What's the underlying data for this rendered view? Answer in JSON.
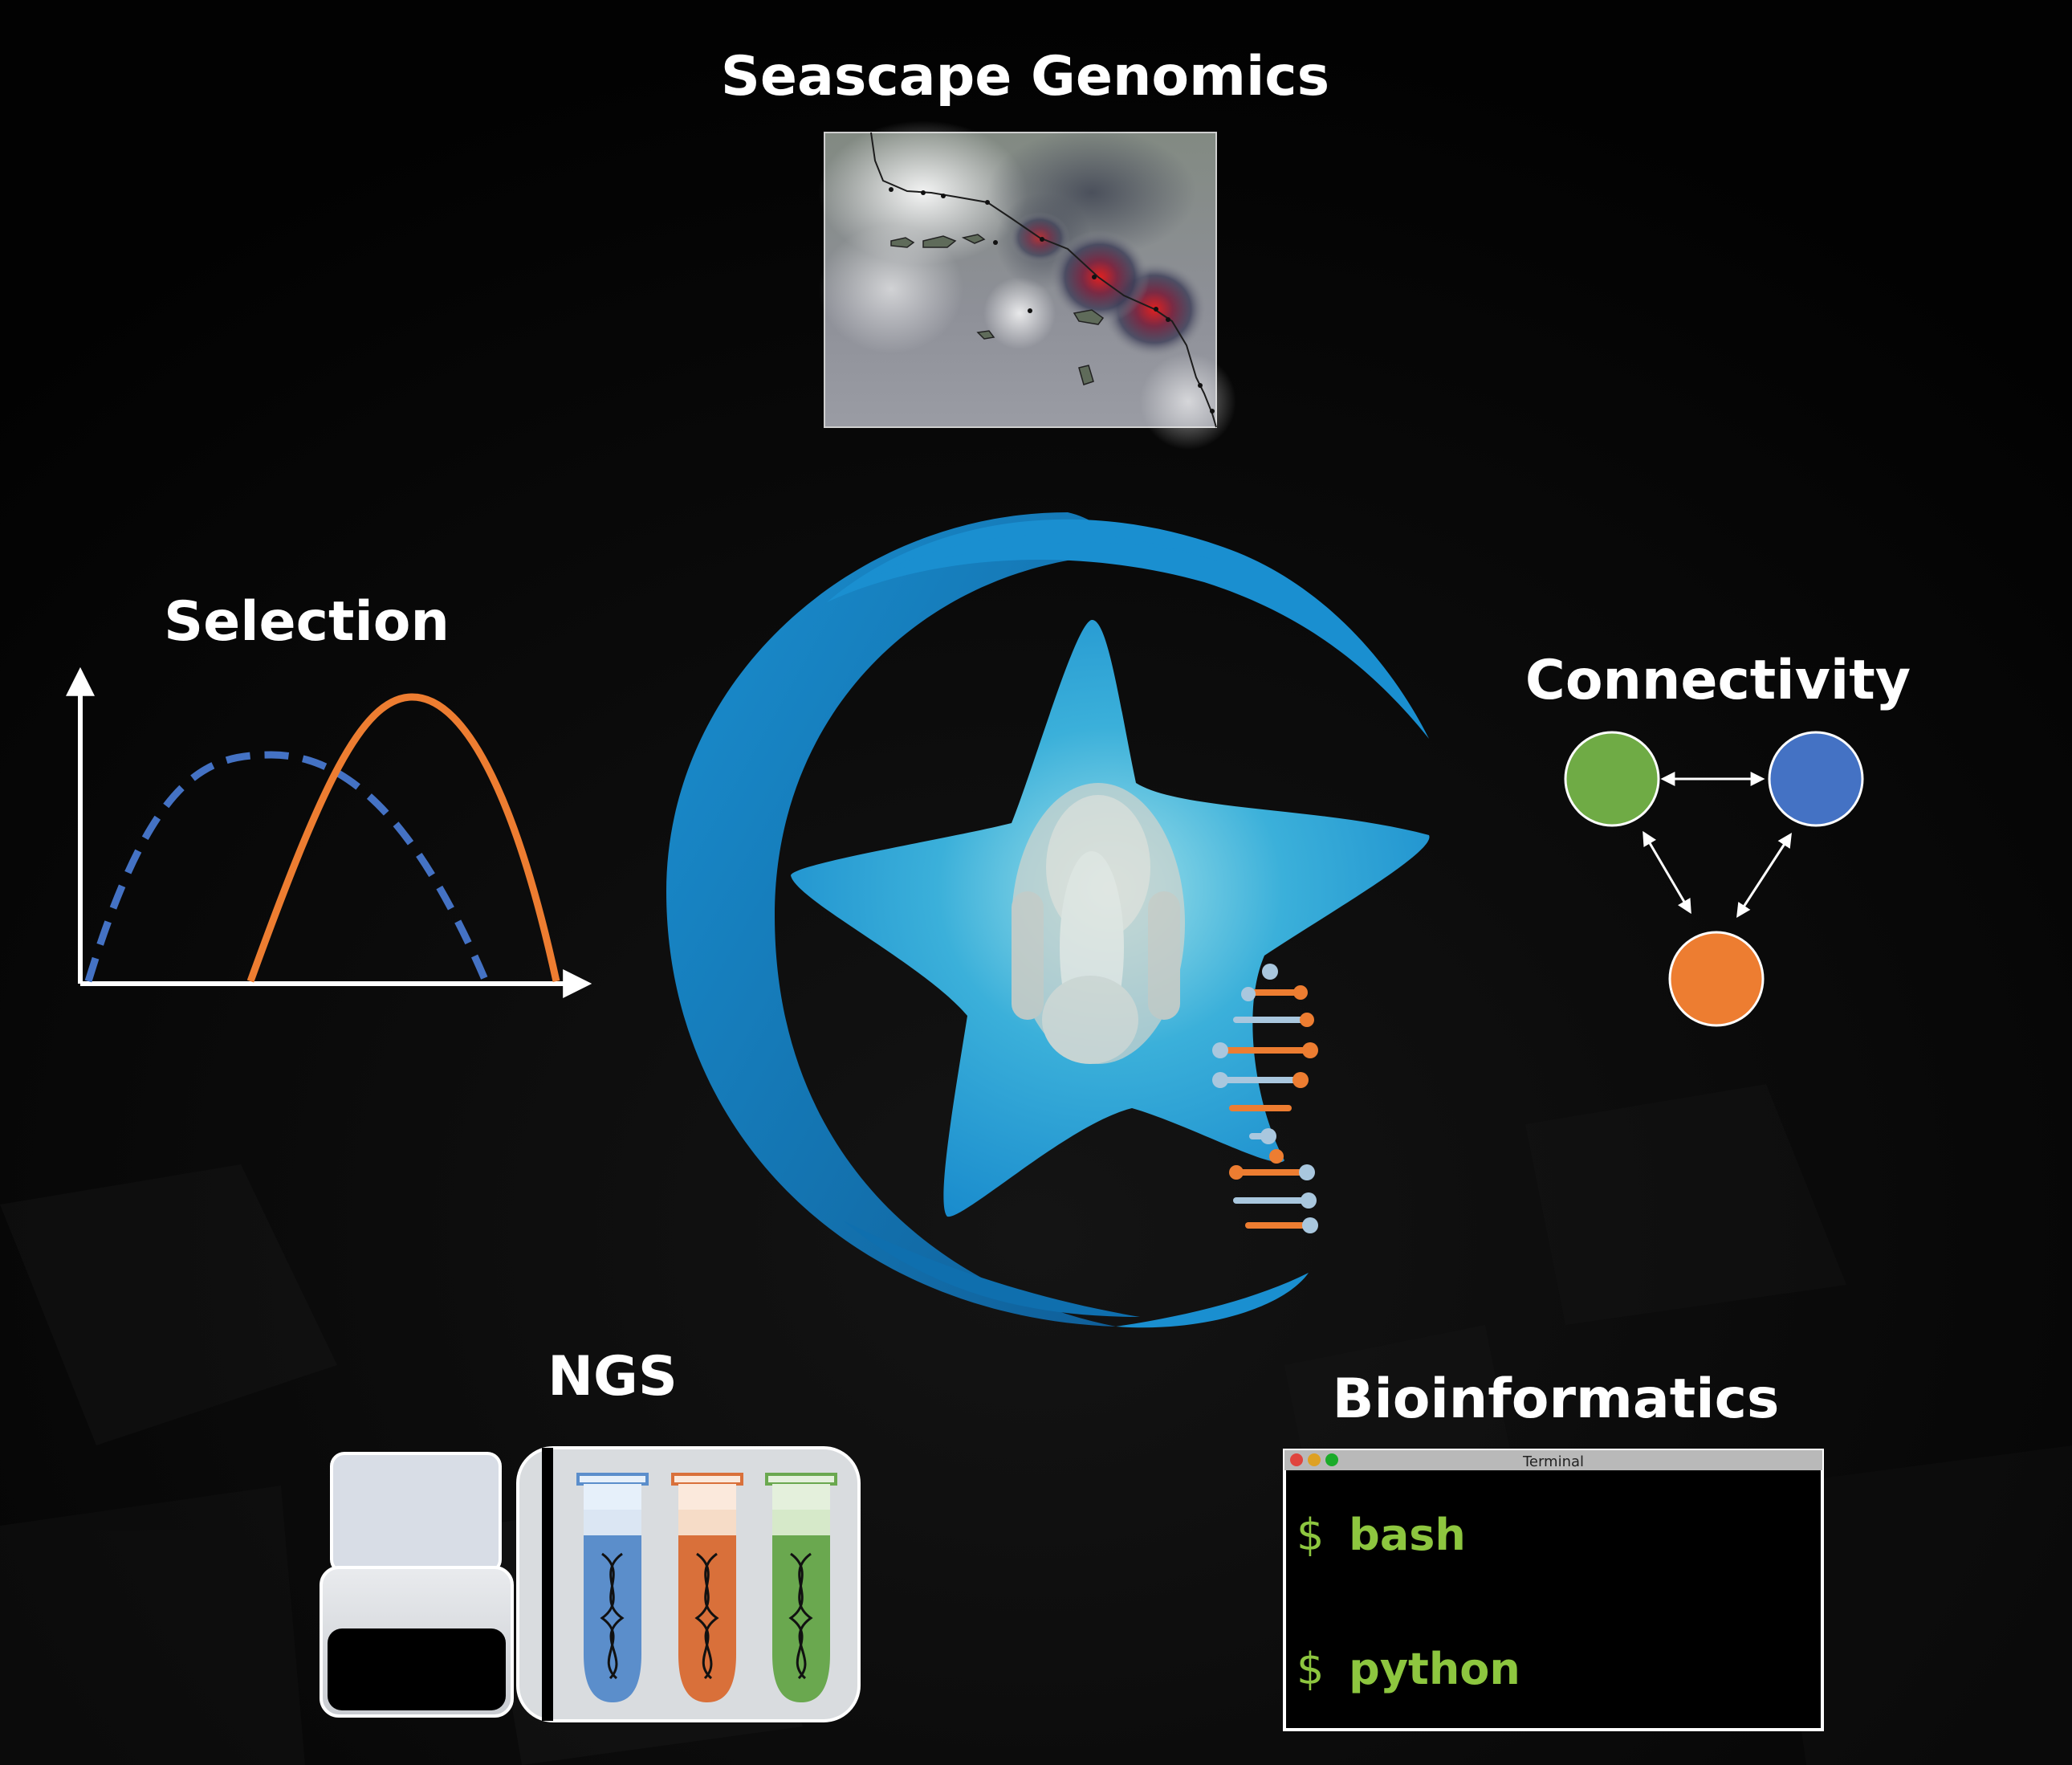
{
  "sections": {
    "seascape": {
      "title": "Seascape Genomics"
    },
    "selection": {
      "title": "Selection"
    },
    "connectivity": {
      "title": "Connectivity"
    },
    "ngs": {
      "title": "NGS"
    },
    "bioinformatics": {
      "title": "Bioinformatics"
    }
  },
  "terminal": {
    "window_title": "Terminal",
    "lines": [
      {
        "prompt": "$",
        "command": "bash"
      },
      {
        "prompt": "$",
        "command": "python"
      }
    ]
  },
  "colors": {
    "background": "#030303",
    "logo_blue": "#1596d4",
    "star_cyan": "#5ec6dc",
    "node_green": "#6fab45",
    "node_blue": "#4472c4",
    "node_orange": "#ed7d31",
    "terminal_green": "#8dc63f",
    "tube_blue": "#5b8ecb",
    "tube_orange": "#d9703a",
    "tube_green": "#6aa84f"
  },
  "icons": {
    "logo": "sea-star-logo-icon",
    "map": "heatmap-coastline-icon",
    "selection_plot": "fitness-curves-icon",
    "network": "three-node-network-icon",
    "sequencer": "sequencer-machine-icon",
    "tubes": "dna-sample-tubes-icon",
    "dna": "dna-helix-icon"
  }
}
